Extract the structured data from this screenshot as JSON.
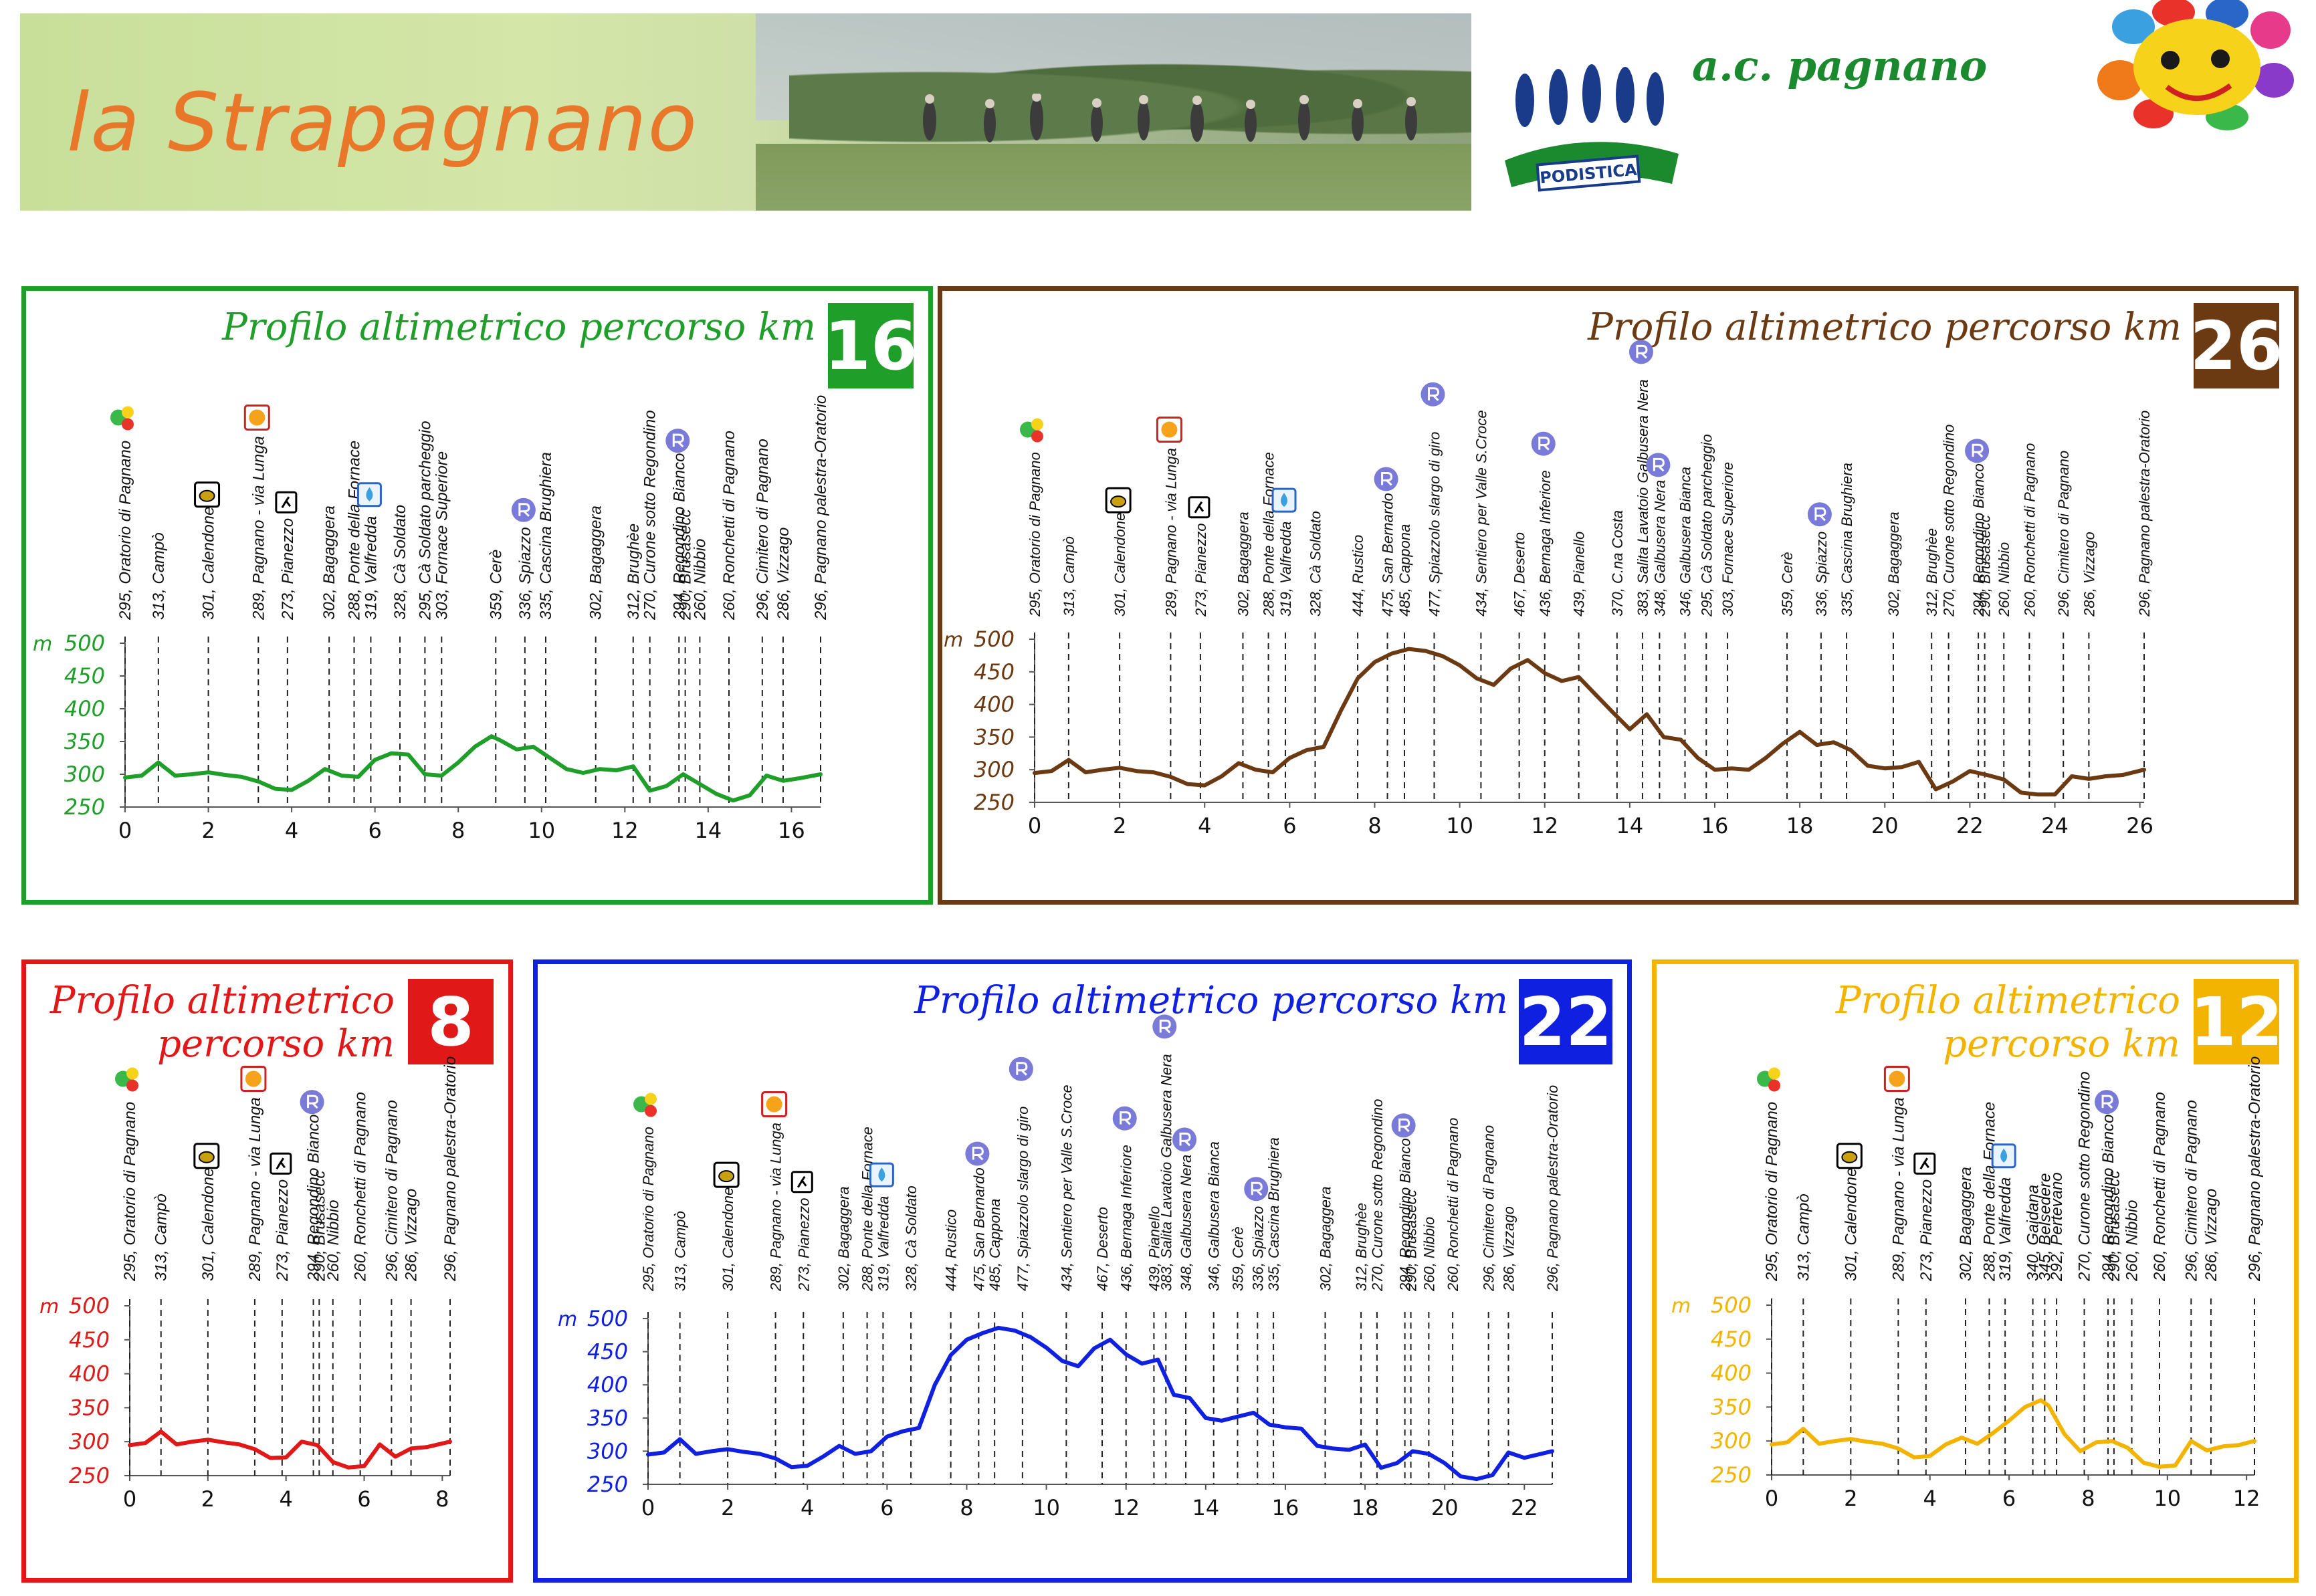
{
  "header": {
    "title": "la Strapagnano",
    "club_name": "a.c. pagnano",
    "club_logo_text": "PODISTICA"
  },
  "chart_data": [
    {
      "type": "line",
      "title": "Profilo altimetrico percorso km",
      "badge": "16",
      "color": "#1f9e2a",
      "ylabel": "m",
      "ylim": [
        250,
        500
      ],
      "yticks": [
        "500",
        "450",
        "400",
        "350",
        "300",
        "250"
      ],
      "xlim": [
        0,
        16.7
      ],
      "xticks": [
        "0",
        "2",
        "4",
        "6",
        "8",
        "10",
        "12",
        "14",
        "16"
      ],
      "waypoints": [
        {
          "km": 0,
          "label": "295, Oratorio di Pagnano"
        },
        {
          "km": 0.8,
          "label": "313, Campò"
        },
        {
          "km": 2.0,
          "label": "301, Calendone"
        },
        {
          "km": 3.2,
          "label": "289, Pagnano - via Lunga"
        },
        {
          "km": 3.9,
          "label": "273, Pianezzo"
        },
        {
          "km": 4.9,
          "label": "302, Bagaggera"
        },
        {
          "km": 5.5,
          "label": "288, Ponte della Fornace"
        },
        {
          "km": 5.9,
          "label": "319, Valfredda"
        },
        {
          "km": 6.6,
          "label": "328, Cà Soldato"
        },
        {
          "km": 7.2,
          "label": "295, Cà Soldato parcheggio"
        },
        {
          "km": 7.6,
          "label": "303, Fornace Superiore"
        },
        {
          "km": 8.9,
          "label": "359, Cerè"
        },
        {
          "km": 9.6,
          "label": "336, Spiazzo"
        },
        {
          "km": 10.1,
          "label": "335, Cascina Brughiera"
        },
        {
          "km": 11.3,
          "label": "302, Bagaggera"
        },
        {
          "km": 12.2,
          "label": "312, Brughèe"
        },
        {
          "km": 12.6,
          "label": "270, Curone sotto Regondino"
        },
        {
          "km": 13.3,
          "label": "294, Regondino Bianco"
        },
        {
          "km": 13.45,
          "label": "290, Brusasecc"
        },
        {
          "km": 13.8,
          "label": "260, Nibbio"
        },
        {
          "km": 14.5,
          "label": "260, Ronchetti di Pagnano"
        },
        {
          "km": 15.3,
          "label": "296, Cimitero di Pagnano"
        },
        {
          "km": 15.8,
          "label": "286, Vizzago"
        },
        {
          "km": 16.7,
          "label": "296, Pagnano palestra-Oratorio"
        }
      ],
      "x": [
        0,
        0.4,
        0.8,
        1.2,
        1.6,
        2.0,
        2.4,
        2.8,
        3.2,
        3.6,
        4.0,
        4.4,
        4.8,
        5.2,
        5.6,
        6.0,
        6.4,
        6.8,
        7.2,
        7.6,
        8.0,
        8.4,
        8.8,
        9.0,
        9.4,
        9.8,
        10.2,
        10.6,
        11.0,
        11.4,
        11.8,
        12.2,
        12.6,
        13.0,
        13.4,
        13.8,
        14.2,
        14.6,
        15.0,
        15.4,
        15.8,
        16.2,
        16.7
      ],
      "y": [
        295,
        298,
        318,
        298,
        300,
        303,
        299,
        296,
        289,
        278,
        276,
        290,
        308,
        298,
        296,
        322,
        332,
        330,
        300,
        298,
        318,
        342,
        358,
        352,
        338,
        342,
        325,
        308,
        302,
        308,
        306,
        312,
        275,
        282,
        300,
        285,
        270,
        260,
        268,
        298,
        290,
        294,
        300
      ]
    },
    {
      "type": "line",
      "title": "Profilo altimetrico percorso km",
      "badge": "26",
      "color": "#6b3a12",
      "ylabel": "m",
      "ylim": [
        250,
        500
      ],
      "yticks": [
        "500",
        "450",
        "400",
        "350",
        "300",
        "250"
      ],
      "xlim": [
        0,
        26.1
      ],
      "xticks": [
        "0",
        "2",
        "4",
        "6",
        "8",
        "10",
        "12",
        "14",
        "16",
        "18",
        "20",
        "22",
        "24",
        "26"
      ],
      "waypoints": [
        {
          "km": 0,
          "label": "295, Oratorio di Pagnano"
        },
        {
          "km": 0.8,
          "label": "313, Campò"
        },
        {
          "km": 2.0,
          "label": "301, Calendone"
        },
        {
          "km": 3.2,
          "label": "289, Pagnano - via Lunga"
        },
        {
          "km": 3.9,
          "label": "273, Pianezzo"
        },
        {
          "km": 4.9,
          "label": "302, Bagaggera"
        },
        {
          "km": 5.5,
          "label": "288, Ponte della Fornace"
        },
        {
          "km": 5.9,
          "label": "319, Valfredda"
        },
        {
          "km": 6.6,
          "label": "328, Cà Soldato"
        },
        {
          "km": 7.6,
          "label": "444, Rustico"
        },
        {
          "km": 8.3,
          "label": "475, San Bernardo"
        },
        {
          "km": 8.7,
          "label": "485, Cappona"
        },
        {
          "km": 9.4,
          "label": "477, Spiazzolo slargo di giro"
        },
        {
          "km": 10.5,
          "label": "434, Sentiero per Valle S.Croce"
        },
        {
          "km": 11.4,
          "label": "467, Deserto"
        },
        {
          "km": 12.0,
          "label": "436, Bernaga Inferiore"
        },
        {
          "km": 12.8,
          "label": "439, Pianello"
        },
        {
          "km": 13.7,
          "label": "370, C.na Costa"
        },
        {
          "km": 14.3,
          "label": "383, Salita Lavatoio Galbusera Nera"
        },
        {
          "km": 14.7,
          "label": "348, Galbusera Nera"
        },
        {
          "km": 15.3,
          "label": "346, Galbusera Bianca"
        },
        {
          "km": 15.8,
          "label": "295, Cà Soldato parcheggio"
        },
        {
          "km": 16.3,
          "label": "303, Fornace Superiore"
        },
        {
          "km": 17.7,
          "label": "359, Cerè"
        },
        {
          "km": 18.5,
          "label": "336, Spiazzo"
        },
        {
          "km": 19.1,
          "label": "335, Cascina Brughiera"
        },
        {
          "km": 20.2,
          "label": "302, Bagaggera"
        },
        {
          "km": 21.1,
          "label": "312, Brughèe"
        },
        {
          "km": 21.5,
          "label": "270, Curone sotto Regondino"
        },
        {
          "km": 22.2,
          "label": "294, Regondino Bianco"
        },
        {
          "km": 22.35,
          "label": "290, Brusasecc"
        },
        {
          "km": 22.8,
          "label": "260, Nibbio"
        },
        {
          "km": 23.4,
          "label": "260, Ronchetti di Pagnano"
        },
        {
          "km": 24.2,
          "label": "296, Cimitero di Pagnano"
        },
        {
          "km": 24.8,
          "label": "286, Vizzago"
        },
        {
          "km": 26.1,
          "label": "296, Pagnano palestra-Oratorio"
        }
      ],
      "x": [
        0,
        0.4,
        0.8,
        1.2,
        1.6,
        2.0,
        2.4,
        2.8,
        3.2,
        3.6,
        4.0,
        4.4,
        4.8,
        5.2,
        5.6,
        6.0,
        6.4,
        6.8,
        7.2,
        7.6,
        8.0,
        8.4,
        8.8,
        9.2,
        9.6,
        10.0,
        10.4,
        10.8,
        11.2,
        11.6,
        12.0,
        12.4,
        12.8,
        13.2,
        13.6,
        14.0,
        14.4,
        14.8,
        15.2,
        15.6,
        16.0,
        16.4,
        16.8,
        17.2,
        17.6,
        18.0,
        18.4,
        18.8,
        19.2,
        19.6,
        20.0,
        20.4,
        20.8,
        21.2,
        21.6,
        22.0,
        22.4,
        22.8,
        23.2,
        23.6,
        24.0,
        24.4,
        24.8,
        25.2,
        25.6,
        26.1
      ],
      "y": [
        295,
        298,
        315,
        296,
        300,
        303,
        298,
        296,
        289,
        278,
        276,
        290,
        310,
        300,
        296,
        318,
        330,
        335,
        390,
        440,
        465,
        478,
        485,
        482,
        474,
        460,
        440,
        430,
        455,
        468,
        448,
        436,
        442,
        415,
        388,
        362,
        385,
        350,
        346,
        318,
        300,
        302,
        300,
        318,
        340,
        358,
        338,
        342,
        330,
        306,
        302,
        304,
        312,
        270,
        282,
        298,
        292,
        285,
        265,
        262,
        262,
        290,
        286,
        290,
        292,
        300
      ]
    },
    {
      "type": "line",
      "title": "Profilo altimetrico percorso km",
      "badge": "8",
      "color": "#e01818",
      "ylabel": "m",
      "ylim": [
        250,
        500
      ],
      "yticks": [
        "500",
        "450",
        "400",
        "350",
        "300",
        "250"
      ],
      "xlim": [
        0,
        8.2
      ],
      "xticks": [
        "0",
        "2",
        "4",
        "6",
        "8"
      ],
      "waypoints": [
        {
          "km": 0,
          "label": "295, Oratorio di Pagnano"
        },
        {
          "km": 0.8,
          "label": "313, Campò"
        },
        {
          "km": 2.0,
          "label": "301, Calendone"
        },
        {
          "km": 3.2,
          "label": "289, Pagnano - via Lunga"
        },
        {
          "km": 3.9,
          "label": "273, Pianezzo"
        },
        {
          "km": 4.7,
          "label": "294, Regondino Bianco"
        },
        {
          "km": 4.85,
          "label": "290, Brusasecc"
        },
        {
          "km": 5.2,
          "label": "260, Nibbio"
        },
        {
          "km": 5.9,
          "label": "260, Ronchetti di Pagnano"
        },
        {
          "km": 6.7,
          "label": "296, Cimitero di Pagnano"
        },
        {
          "km": 7.2,
          "label": "286, Vizzago"
        },
        {
          "km": 8.2,
          "label": "296, Pagnano palestra-Oratorio"
        }
      ],
      "x": [
        0,
        0.4,
        0.8,
        1.2,
        1.6,
        2.0,
        2.4,
        2.8,
        3.2,
        3.6,
        4.0,
        4.4,
        4.8,
        5.2,
        5.6,
        6.0,
        6.4,
        6.8,
        7.2,
        7.6,
        8.2
      ],
      "y": [
        295,
        298,
        315,
        296,
        300,
        303,
        299,
        296,
        289,
        276,
        277,
        300,
        295,
        270,
        262,
        264,
        296,
        278,
        290,
        292,
        300
      ]
    },
    {
      "type": "line",
      "title": "Profilo altimetrico percorso km",
      "badge": "22",
      "color": "#1020e0",
      "ylabel": "m",
      "ylim": [
        250,
        500
      ],
      "yticks": [
        "500",
        "450",
        "400",
        "350",
        "300",
        "250"
      ],
      "xlim": [
        0,
        22.7
      ],
      "xticks": [
        "0",
        "2",
        "4",
        "6",
        "8",
        "10",
        "12",
        "14",
        "16",
        "18",
        "20",
        "22"
      ],
      "waypoints": [
        {
          "km": 0,
          "label": "295, Oratorio di Pagnano"
        },
        {
          "km": 0.8,
          "label": "313, Campò"
        },
        {
          "km": 2.0,
          "label": "301, Calendone"
        },
        {
          "km": 3.2,
          "label": "289, Pagnano - via Lunga"
        },
        {
          "km": 3.9,
          "label": "273, Pianezzo"
        },
        {
          "km": 4.9,
          "label": "302, Bagaggera"
        },
        {
          "km": 5.5,
          "label": "288, Ponte della Fornace"
        },
        {
          "km": 5.9,
          "label": "319, Valfredda"
        },
        {
          "km": 6.6,
          "label": "328, Cà Soldato"
        },
        {
          "km": 7.6,
          "label": "444, Rustico"
        },
        {
          "km": 8.3,
          "label": "475, San Bernardo"
        },
        {
          "km": 8.7,
          "label": "485, Cappona"
        },
        {
          "km": 9.4,
          "label": "477, Spiazzolo slargo di giro"
        },
        {
          "km": 10.5,
          "label": "434, Sentiero per Valle S.Croce"
        },
        {
          "km": 11.4,
          "label": "467, Deserto"
        },
        {
          "km": 12.0,
          "label": "436, Bernaga Inferiore"
        },
        {
          "km": 12.7,
          "label": "439, Pianello"
        },
        {
          "km": 13.0,
          "label": "383, Salita Lavatoio Galbusera Nera"
        },
        {
          "km": 13.5,
          "label": "348, Galbusera Nera"
        },
        {
          "km": 14.2,
          "label": "346, Galbusera Bianca"
        },
        {
          "km": 14.8,
          "label": "359, Cerè"
        },
        {
          "km": 15.3,
          "label": "336, Spiazzo"
        },
        {
          "km": 15.7,
          "label": "335, Cascina Brughiera"
        },
        {
          "km": 17.0,
          "label": "302, Bagaggera"
        },
        {
          "km": 17.9,
          "label": "312, Brughèe"
        },
        {
          "km": 18.3,
          "label": "270, Curone sotto Regondino"
        },
        {
          "km": 19.0,
          "label": "294, Regondino Bianco"
        },
        {
          "km": 19.15,
          "label": "290, Brusasecc"
        },
        {
          "km": 19.6,
          "label": "260, Nibbio"
        },
        {
          "km": 20.2,
          "label": "260, Ronchetti di Pagnano"
        },
        {
          "km": 21.1,
          "label": "296, Cimitero di Pagnano"
        },
        {
          "km": 21.6,
          "label": "286, Vizzago"
        },
        {
          "km": 22.7,
          "label": "296, Pagnano palestra-Oratorio"
        }
      ],
      "x": [
        0,
        0.4,
        0.8,
        1.2,
        1.6,
        2.0,
        2.4,
        2.8,
        3.2,
        3.6,
        4.0,
        4.4,
        4.8,
        5.2,
        5.6,
        6.0,
        6.4,
        6.8,
        7.2,
        7.6,
        8.0,
        8.4,
        8.8,
        9.2,
        9.6,
        10.0,
        10.4,
        10.8,
        11.2,
        11.6,
        12.0,
        12.4,
        12.8,
        13.2,
        13.6,
        14.0,
        14.4,
        14.8,
        15.2,
        15.6,
        16.0,
        16.4,
        16.8,
        17.2,
        17.6,
        18.0,
        18.4,
        18.8,
        19.2,
        19.6,
        20.0,
        20.4,
        20.8,
        21.2,
        21.6,
        22.0,
        22.7
      ],
      "y": [
        295,
        298,
        318,
        296,
        300,
        303,
        299,
        296,
        289,
        276,
        278,
        292,
        308,
        296,
        300,
        322,
        330,
        335,
        400,
        445,
        468,
        478,
        486,
        482,
        472,
        456,
        436,
        428,
        455,
        468,
        446,
        432,
        438,
        385,
        380,
        350,
        346,
        352,
        358,
        340,
        336,
        334,
        308,
        304,
        302,
        310,
        275,
        282,
        300,
        296,
        282,
        262,
        258,
        264,
        298,
        290,
        300
      ]
    },
    {
      "type": "line",
      "title": "Profilo altimetrico percorso km",
      "badge": "12",
      "color": "#f2b400",
      "ylabel": "m",
      "ylim": [
        250,
        500
      ],
      "yticks": [
        "500",
        "450",
        "400",
        "350",
        "300",
        "250"
      ],
      "xlim": [
        0,
        12.2
      ],
      "xticks": [
        "0",
        "2",
        "4",
        "6",
        "8",
        "10",
        "12"
      ],
      "waypoints": [
        {
          "km": 0,
          "label": "295, Oratorio di Pagnano"
        },
        {
          "km": 0.8,
          "label": "313, Campò"
        },
        {
          "km": 2.0,
          "label": "301, Calendone"
        },
        {
          "km": 3.2,
          "label": "289, Pagnano - via Lunga"
        },
        {
          "km": 3.9,
          "label": "273, Pianezzo"
        },
        {
          "km": 4.9,
          "label": "302, Bagaggera"
        },
        {
          "km": 5.5,
          "label": "288, Ponte della Fornace"
        },
        {
          "km": 5.9,
          "label": "319, Valfredda"
        },
        {
          "km": 6.6,
          "label": "340, Gaidana"
        },
        {
          "km": 6.9,
          "label": "345, Belsedere"
        },
        {
          "km": 7.2,
          "label": "292, Pertevano"
        },
        {
          "km": 7.9,
          "label": "270, Curone sotto Regondino"
        },
        {
          "km": 8.5,
          "label": "294, Regondino Bianco"
        },
        {
          "km": 8.65,
          "label": "290, Brusasecc"
        },
        {
          "km": 9.1,
          "label": "260, Nibbio"
        },
        {
          "km": 9.8,
          "label": "260, Ronchetti di Pagnano"
        },
        {
          "km": 10.6,
          "label": "296, Cimitero di Pagnano"
        },
        {
          "km": 11.1,
          "label": "286, Vizzago"
        },
        {
          "km": 12.2,
          "label": "296, Pagnano palestra-Oratorio"
        }
      ],
      "x": [
        0,
        0.4,
        0.8,
        1.2,
        1.6,
        2.0,
        2.4,
        2.8,
        3.2,
        3.6,
        4.0,
        4.4,
        4.8,
        5.2,
        5.6,
        6.0,
        6.4,
        6.8,
        7.0,
        7.4,
        7.8,
        8.2,
        8.6,
        9.0,
        9.4,
        9.8,
        10.2,
        10.6,
        11.0,
        11.4,
        11.8,
        12.2
      ],
      "y": [
        295,
        298,
        318,
        296,
        300,
        303,
        299,
        296,
        289,
        276,
        278,
        295,
        305,
        296,
        312,
        330,
        350,
        360,
        352,
        310,
        285,
        298,
        300,
        290,
        268,
        262,
        264,
        300,
        286,
        292,
        294,
        300
      ]
    }
  ]
}
